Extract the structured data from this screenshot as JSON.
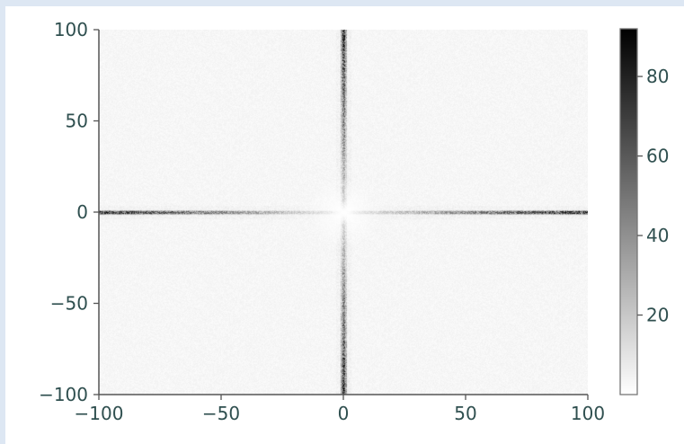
{
  "colors": {
    "background": "#dde7f3",
    "figure": "#ffffff",
    "axis": "#555555",
    "tick_text": "#2f4f4f",
    "cmap_low": "#ffffff",
    "cmap_high": "#000000"
  },
  "chart_data": {
    "type": "heatmap",
    "title": "",
    "xlabel": "",
    "ylabel": "",
    "xlim": [
      -100,
      100
    ],
    "ylim": [
      -100,
      100
    ],
    "xticks": [
      -100,
      -50,
      0,
      50,
      100
    ],
    "yticks": [
      -100,
      -50,
      0,
      50,
      100
    ],
    "xtick_labels": [
      "−100",
      "−50",
      "0",
      "50",
      "100"
    ],
    "ytick_labels": [
      "−100",
      "−50",
      "0",
      "50",
      "100"
    ],
    "colormap": "Greys",
    "color_range": [
      0,
      92
    ],
    "colorbar_ticks": [
      20,
      40,
      60,
      80
    ],
    "colorbar_tick_labels": [
      "20",
      "40",
      "60",
      "80"
    ],
    "grid": false,
    "features": [
      {
        "name": "horizontal ridge",
        "orientation": "horizontal",
        "at": 0,
        "peak_value": 90,
        "center_gap_value": 3
      },
      {
        "name": "vertical ridge",
        "orientation": "vertical",
        "at": 0,
        "peak_value": 90,
        "center_gap_value": 3
      },
      {
        "name": "background",
        "value": 3
      }
    ]
  }
}
